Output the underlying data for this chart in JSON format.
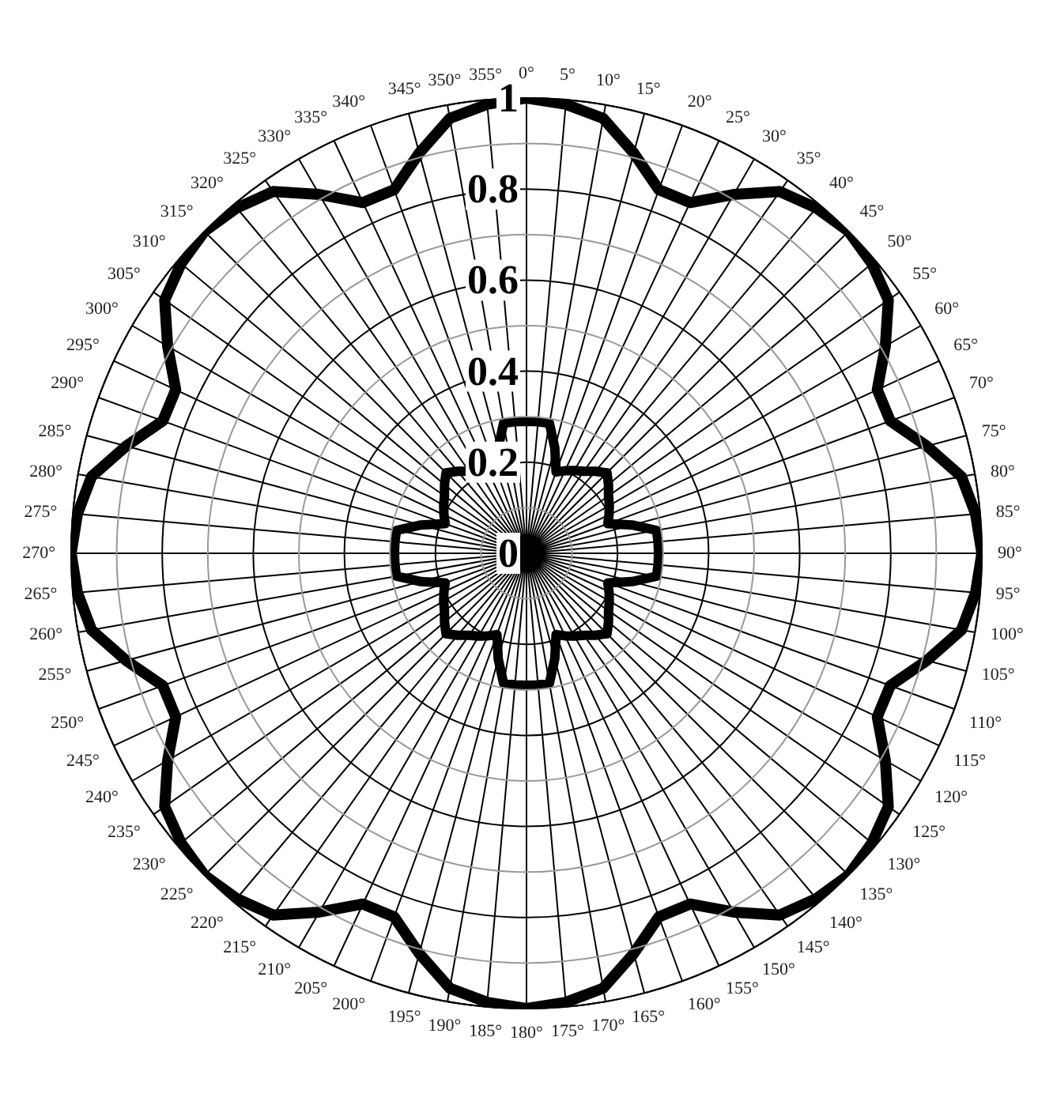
{
  "chart_data": {
    "type": "radar",
    "categories": [
      "0°",
      "5°",
      "10°",
      "15°",
      "20°",
      "25°",
      "30°",
      "35°",
      "40°",
      "45°",
      "50°",
      "55°",
      "60°",
      "65°",
      "70°",
      "75°",
      "80°",
      "85°",
      "90°",
      "95°",
      "100°",
      "105°",
      "110°",
      "115°",
      "120°",
      "125°",
      "130°",
      "135°",
      "140°",
      "145°",
      "150°",
      "155°",
      "160°",
      "165°",
      "170°",
      "175°",
      "180°",
      "185°",
      "190°",
      "195°",
      "200°",
      "205°",
      "210°",
      "215°",
      "220°",
      "225°",
      "230°",
      "235°",
      "240°",
      "245°",
      "250°",
      "255°",
      "260°",
      "265°",
      "270°",
      "275°",
      "280°",
      "285°",
      "290°",
      "295°",
      "300°",
      "305°",
      "310°",
      "315°",
      "320°",
      "325°",
      "330°",
      "335°",
      "340°",
      "345°",
      "350°",
      "355°"
    ],
    "series": [
      {
        "color": "#000000",
        "values": [
          1,
          0.99,
          0.97,
          0.91,
          0.85,
          0.85,
          0.91,
          0.97,
          0.99,
          1,
          0.99,
          0.97,
          0.91,
          0.85,
          0.85,
          0.91,
          0.97,
          0.99,
          1,
          0.99,
          0.97,
          0.91,
          0.85,
          0.85,
          0.91,
          0.97,
          0.99,
          1,
          0.99,
          0.97,
          0.91,
          0.85,
          0.85,
          0.91,
          0.97,
          0.99,
          1,
          0.99,
          0.97,
          0.91,
          0.85,
          0.85,
          0.91,
          0.97,
          0.99,
          1,
          0.99,
          0.97,
          0.91,
          0.85,
          0.85,
          0.91,
          0.97,
          0.99,
          1,
          0.99,
          0.97,
          0.91,
          0.85,
          0.85,
          0.91,
          0.97,
          0.99,
          1,
          0.99,
          0.97,
          0.91,
          0.85,
          0.85,
          0.91,
          0.97,
          0.99
        ]
      },
      {
        "color": "#000000",
        "values": [
          0.29,
          0.29,
          0.29,
          0.24,
          0.19,
          0.2,
          0.21,
          0.22,
          0.235,
          0.25,
          0.235,
          0.22,
          0.21,
          0.2,
          0.19,
          0.24,
          0.29,
          0.29,
          0.29,
          0.29,
          0.29,
          0.24,
          0.19,
          0.2,
          0.21,
          0.22,
          0.235,
          0.25,
          0.235,
          0.22,
          0.21,
          0.2,
          0.19,
          0.24,
          0.29,
          0.29,
          0.29,
          0.29,
          0.29,
          0.24,
          0.19,
          0.2,
          0.21,
          0.22,
          0.235,
          0.25,
          0.235,
          0.22,
          0.21,
          0.2,
          0.19,
          0.24,
          0.29,
          0.29,
          0.29,
          0.29,
          0.29,
          0.24,
          0.19,
          0.2,
          0.21,
          0.22,
          0.235,
          0.25,
          0.235,
          0.22,
          0.21,
          0.2,
          0.19,
          0.24,
          0.29,
          0.29
        ]
      }
    ],
    "ylim": [
      0,
      1
    ],
    "yticks": [
      0,
      0.2,
      0.4,
      0.6,
      0.8,
      1
    ],
    "grid": true,
    "marker": "none",
    "line_style": "solid"
  }
}
